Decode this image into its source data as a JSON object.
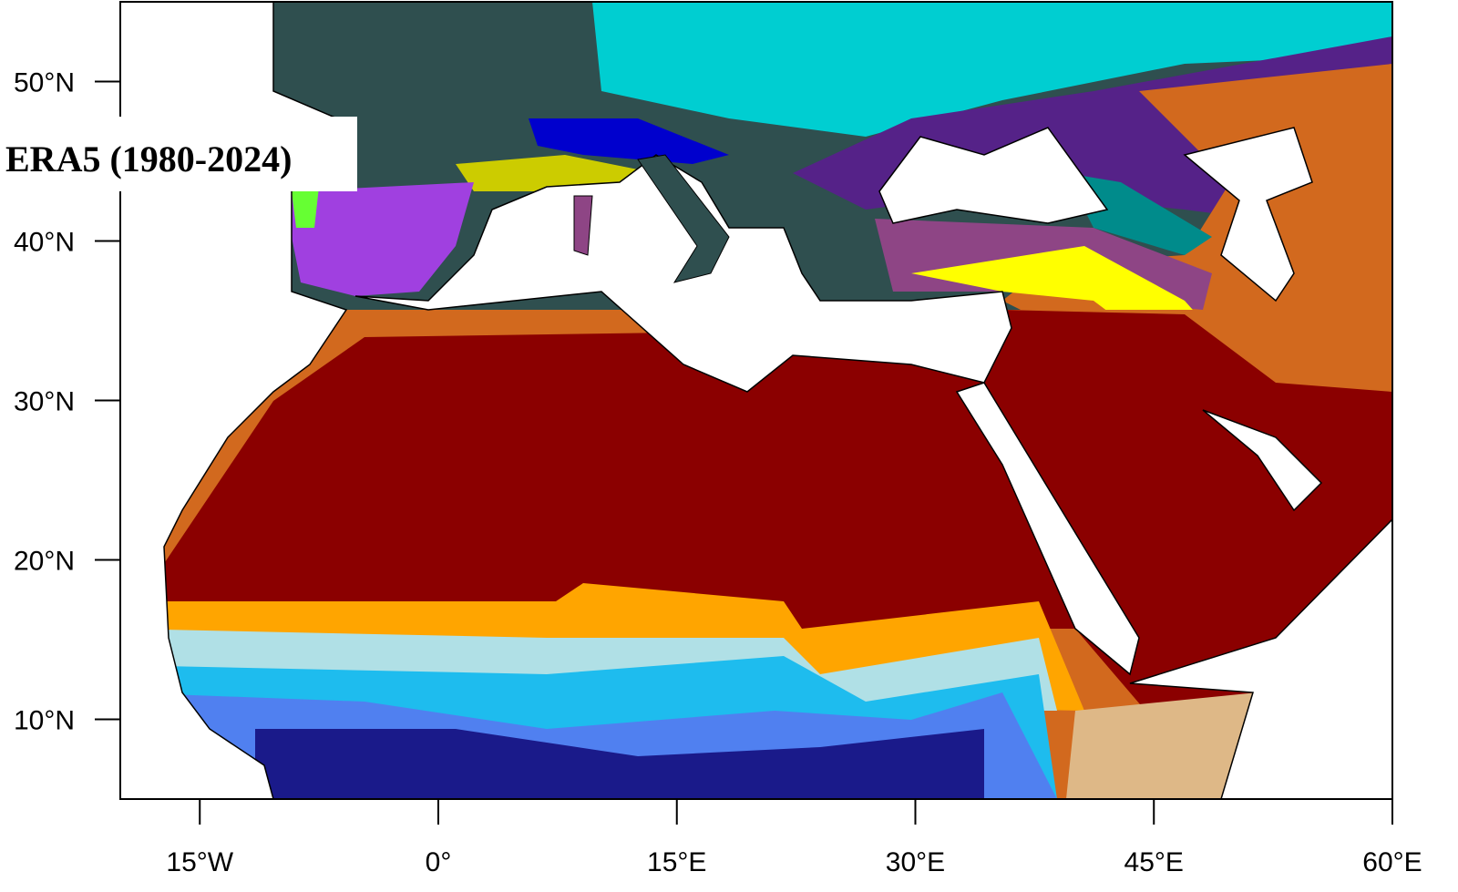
{
  "map": {
    "title": "ERA5 (1980-2024)",
    "xlim": [
      -20,
      60
    ],
    "ylim": [
      5,
      55
    ],
    "xticks": [
      {
        "value": -15,
        "label": "15°W"
      },
      {
        "value": 0,
        "label": "0°"
      },
      {
        "value": 15,
        "label": "15°E"
      },
      {
        "value": 30,
        "label": "30°E"
      },
      {
        "value": 45,
        "label": "45°E"
      },
      {
        "value": 60,
        "label": "60°E"
      }
    ],
    "yticks": [
      {
        "value": 10,
        "label": "10°N"
      },
      {
        "value": 20,
        "label": "20°N"
      },
      {
        "value": 30,
        "label": "30°N"
      },
      {
        "value": 40,
        "label": "40°N"
      },
      {
        "value": 50,
        "label": "50°N"
      }
    ]
  }
}
